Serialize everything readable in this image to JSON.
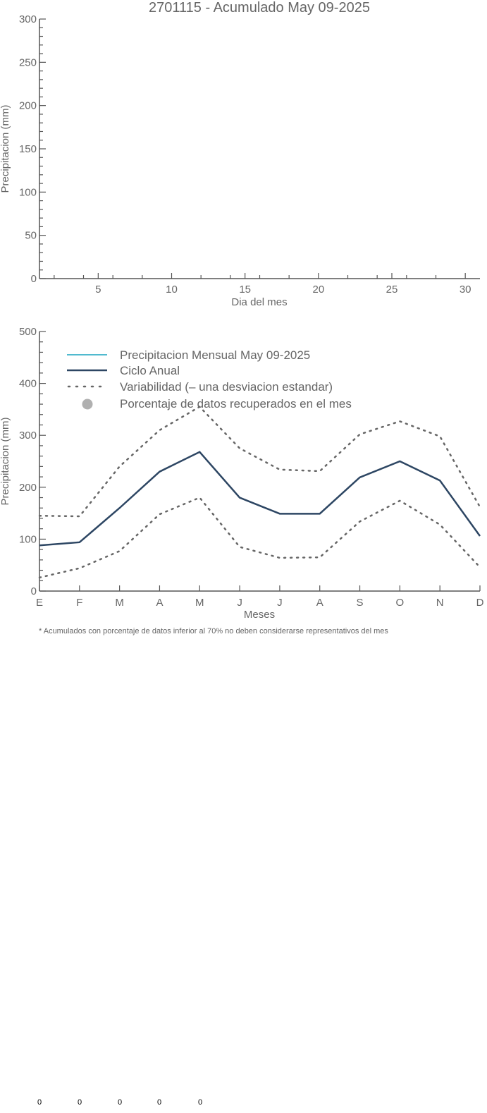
{
  "daily_chart": {
    "title": "2701115 - Acumulado May 09-2025",
    "xlabel": "Dia del mes",
    "ylabel": "Precipitacion (mm)",
    "y_ticks": [
      0,
      50,
      100,
      150,
      200,
      250,
      300
    ],
    "x_ticks": [
      5,
      10,
      15,
      20,
      25,
      30
    ]
  },
  "monthly_chart": {
    "xlabel": "Meses",
    "ylabel": "Precipitacion (mm)",
    "y_ticks": [
      0,
      100,
      200,
      300,
      400,
      500
    ],
    "legend": [
      {
        "label": "Precipitacion Mensual May 09-2025",
        "color": "#38b0c8",
        "style": "solid-thin"
      },
      {
        "label": "Ciclo Anual",
        "color": "#2d4663",
        "style": "solid-thick"
      },
      {
        "label": "Variabilidad (– una desviacion estandar)",
        "color": "#666666",
        "style": "dotted"
      },
      {
        "label": "Porcentaje de datos recuperados en el mes",
        "color": "#b0b0b0",
        "style": "dot"
      }
    ],
    "footnote": "* Acumulados con porcentaje de datos inferior al 70% no deben considerarse representativos del mes"
  },
  "bottom_counts": [
    "0",
    "0",
    "0",
    "0",
    "0"
  ],
  "chart_data": [
    {
      "type": "line",
      "title": "2701115 - Acumulado May 09-2025",
      "xlabel": "Dia del mes",
      "ylabel": "Precipitacion (mm)",
      "xlim": [
        1,
        31
      ],
      "ylim": [
        0,
        300
      ],
      "series": []
    },
    {
      "type": "line",
      "xlabel": "Meses",
      "ylabel": "Precipitacion (mm)",
      "ylim": [
        0,
        500
      ],
      "categories": [
        "E",
        "F",
        "M",
        "A",
        "M",
        "J",
        "J",
        "A",
        "S",
        "O",
        "N",
        "D"
      ],
      "series": [
        {
          "name": "Ciclo Anual",
          "values": [
            88,
            94,
            160,
            230,
            268,
            180,
            149,
            149,
            219,
            250,
            213,
            106
          ]
        },
        {
          "name": "Variabilidad (– una desviacion estandar)",
          "values": [
            145,
            144,
            240,
            310,
            355,
            275,
            234,
            231,
            302,
            327,
            298,
            162
          ]
        },
        {
          "name": "Variabilidad (– una desviacion estandar)",
          "values": [
            26,
            44,
            77,
            148,
            180,
            85,
            64,
            65,
            134,
            174,
            128,
            46
          ]
        }
      ],
      "legend_position": "top-left"
    }
  ]
}
